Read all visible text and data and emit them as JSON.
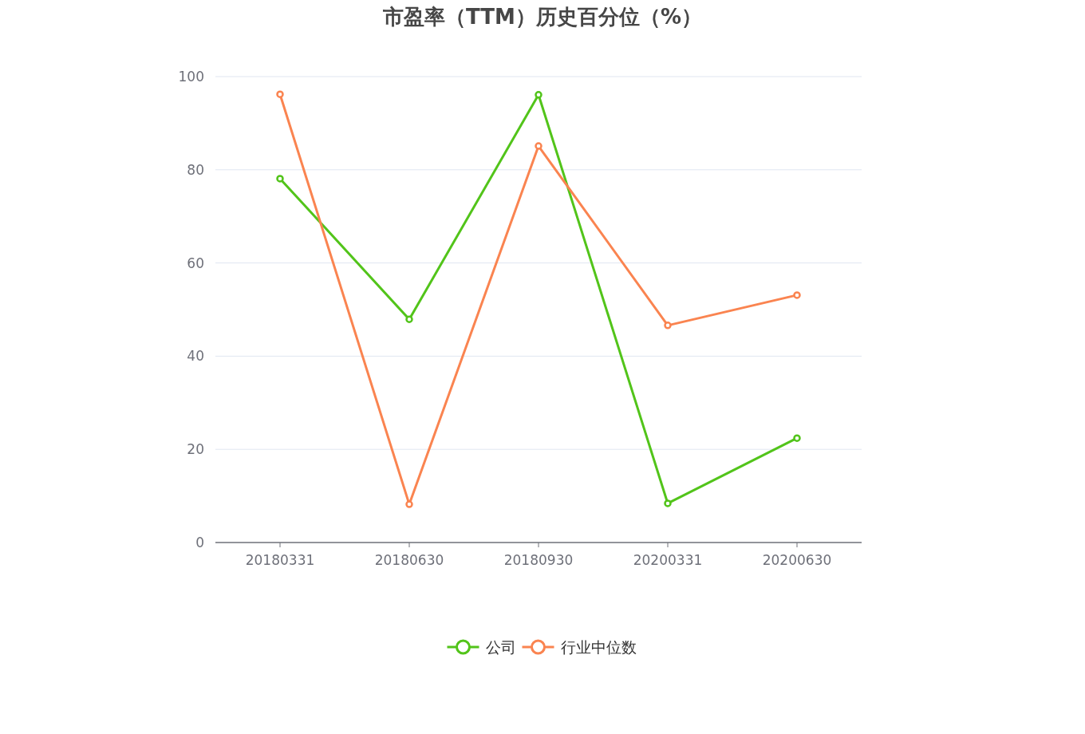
{
  "chart_data": {
    "type": "line",
    "title": "市盈率（TTM）历史百分位（%）",
    "categories": [
      "20180331",
      "20180630",
      "20180930",
      "20200331",
      "20200630"
    ],
    "series": [
      {
        "name": "公司",
        "color": "#52c41a",
        "values": [
          78.1,
          47.9,
          96.1,
          8.4,
          22.4
        ]
      },
      {
        "name": "行业中位数",
        "color": "#fa8450",
        "values": [
          96.2,
          8.2,
          85.1,
          46.6,
          53.1
        ]
      }
    ],
    "ylim": [
      0,
      100
    ],
    "yticks": [
      0,
      20,
      40,
      60,
      80,
      100
    ],
    "grid": "y",
    "legend": "bottom",
    "marker": "circle"
  }
}
